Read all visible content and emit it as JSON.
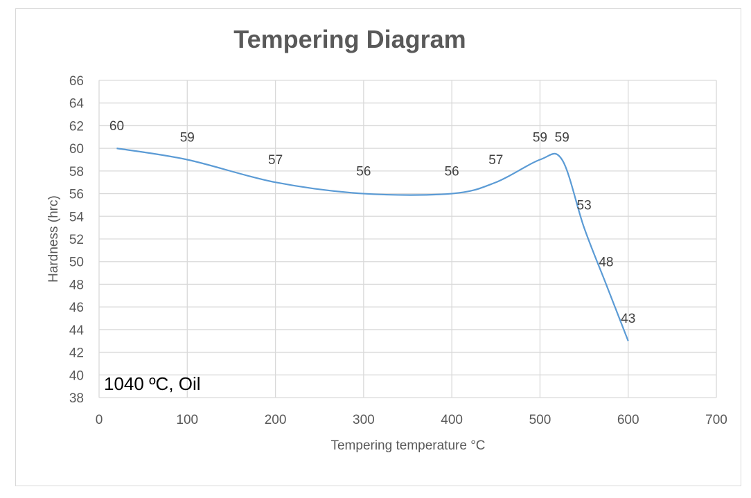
{
  "chart_data": {
    "type": "line",
    "title": "Tempering Diagram",
    "xlabel": "Tempering temperature °C",
    "ylabel": "Hardness (hrc)",
    "xlim": [
      0,
      700
    ],
    "ylim": [
      38,
      66
    ],
    "x_ticks": [
      0,
      100,
      200,
      300,
      400,
      500,
      600,
      700
    ],
    "y_ticks": [
      38,
      40,
      42,
      44,
      46,
      48,
      50,
      52,
      54,
      56,
      58,
      60,
      62,
      64,
      66
    ],
    "grid": true,
    "series": [
      {
        "name": "Hardness",
        "color": "#5b9bd5",
        "x": [
          20,
          100,
          200,
          300,
          400,
          450,
          500,
          525,
          550,
          575,
          600
        ],
        "values": [
          60,
          59,
          57,
          56,
          56,
          57,
          59,
          59,
          53,
          48,
          43
        ]
      }
    ],
    "annotation": "1040 ºC, Oil"
  }
}
